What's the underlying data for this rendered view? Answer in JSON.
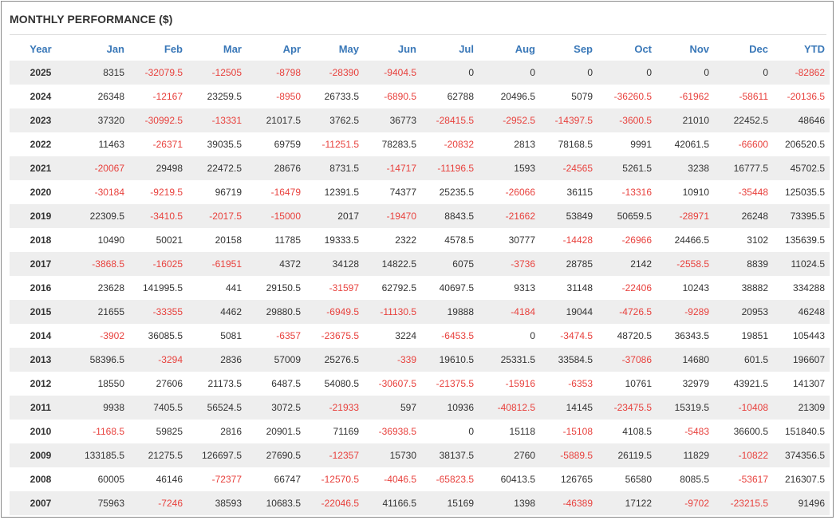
{
  "title": "MONTHLY PERFORMANCE ($)",
  "colors": {
    "header": "#3a78b8",
    "negative": "#e8413d",
    "text": "#333333",
    "stripe": "#eeeeee"
  },
  "columns": [
    "Year",
    "Jan",
    "Feb",
    "Mar",
    "Apr",
    "May",
    "Jun",
    "Jul",
    "Aug",
    "Sep",
    "Oct",
    "Nov",
    "Dec",
    "YTD"
  ],
  "rows": [
    [
      "2025",
      "8315",
      "-32079.5",
      "-12505",
      "-8798",
      "-28390",
      "-9404.5",
      "0",
      "0",
      "0",
      "0",
      "0",
      "0",
      "-82862"
    ],
    [
      "2024",
      "26348",
      "-12167",
      "23259.5",
      "-8950",
      "26733.5",
      "-6890.5",
      "62788",
      "20496.5",
      "5079",
      "-36260.5",
      "-61962",
      "-58611",
      "-20136.5"
    ],
    [
      "2023",
      "37320",
      "-30992.5",
      "-13331",
      "21017.5",
      "3762.5",
      "36773",
      "-28415.5",
      "-2952.5",
      "-14397.5",
      "-3600.5",
      "21010",
      "22452.5",
      "48646"
    ],
    [
      "2022",
      "11463",
      "-26371",
      "39035.5",
      "69759",
      "-11251.5",
      "78283.5",
      "-20832",
      "2813",
      "78168.5",
      "9991",
      "42061.5",
      "-66600",
      "206520.5"
    ],
    [
      "2021",
      "-20067",
      "29498",
      "22472.5",
      "28676",
      "8731.5",
      "-14717",
      "-11196.5",
      "1593",
      "-24565",
      "5261.5",
      "3238",
      "16777.5",
      "45702.5"
    ],
    [
      "2020",
      "-30184",
      "-9219.5",
      "96719",
      "-16479",
      "12391.5",
      "74377",
      "25235.5",
      "-26066",
      "36115",
      "-13316",
      "10910",
      "-35448",
      "125035.5"
    ],
    [
      "2019",
      "22309.5",
      "-3410.5",
      "-2017.5",
      "-15000",
      "2017",
      "-19470",
      "8843.5",
      "-21662",
      "53849",
      "50659.5",
      "-28971",
      "26248",
      "73395.5"
    ],
    [
      "2018",
      "10490",
      "50021",
      "20158",
      "11785",
      "19333.5",
      "2322",
      "4578.5",
      "30777",
      "-14428",
      "-26966",
      "24466.5",
      "3102",
      "135639.5"
    ],
    [
      "2017",
      "-3868.5",
      "-16025",
      "-61951",
      "4372",
      "34128",
      "14822.5",
      "6075",
      "-3736",
      "28785",
      "2142",
      "-2558.5",
      "8839",
      "11024.5"
    ],
    [
      "2016",
      "23628",
      "141995.5",
      "441",
      "29150.5",
      "-31597",
      "62792.5",
      "40697.5",
      "9313",
      "31148",
      "-22406",
      "10243",
      "38882",
      "334288"
    ],
    [
      "2015",
      "21655",
      "-33355",
      "4462",
      "29880.5",
      "-6949.5",
      "-11130.5",
      "19888",
      "-4184",
      "19044",
      "-4726.5",
      "-9289",
      "20953",
      "46248"
    ],
    [
      "2014",
      "-3902",
      "36085.5",
      "5081",
      "-6357",
      "-23675.5",
      "3224",
      "-6453.5",
      "0",
      "-3474.5",
      "48720.5",
      "36343.5",
      "19851",
      "105443"
    ],
    [
      "2013",
      "58396.5",
      "-3294",
      "2836",
      "57009",
      "25276.5",
      "-339",
      "19610.5",
      "25331.5",
      "33584.5",
      "-37086",
      "14680",
      "601.5",
      "196607"
    ],
    [
      "2012",
      "18550",
      "27606",
      "21173.5",
      "6487.5",
      "54080.5",
      "-30607.5",
      "-21375.5",
      "-15916",
      "-6353",
      "10761",
      "32979",
      "43921.5",
      "141307"
    ],
    [
      "2011",
      "9938",
      "7405.5",
      "56524.5",
      "3072.5",
      "-21933",
      "597",
      "10936",
      "-40812.5",
      "14145",
      "-23475.5",
      "15319.5",
      "-10408",
      "21309"
    ],
    [
      "2010",
      "-1168.5",
      "59825",
      "2816",
      "20901.5",
      "71169",
      "-36938.5",
      "0",
      "15118",
      "-15108",
      "4108.5",
      "-5483",
      "36600.5",
      "151840.5"
    ],
    [
      "2009",
      "133185.5",
      "21275.5",
      "126697.5",
      "27690.5",
      "-12357",
      "15730",
      "38137.5",
      "2760",
      "-5889.5",
      "26119.5",
      "11829",
      "-10822",
      "374356.5"
    ],
    [
      "2008",
      "60005",
      "46146",
      "-72377",
      "66747",
      "-12570.5",
      "-4046.5",
      "-65823.5",
      "60413.5",
      "126765",
      "56580",
      "8085.5",
      "-53617",
      "216307.5"
    ],
    [
      "2007",
      "75963",
      "-7246",
      "38593",
      "10683.5",
      "-22046.5",
      "41166.5",
      "15169",
      "1398",
      "-46389",
      "17122",
      "-9702",
      "-23215.5",
      "91496"
    ]
  ]
}
